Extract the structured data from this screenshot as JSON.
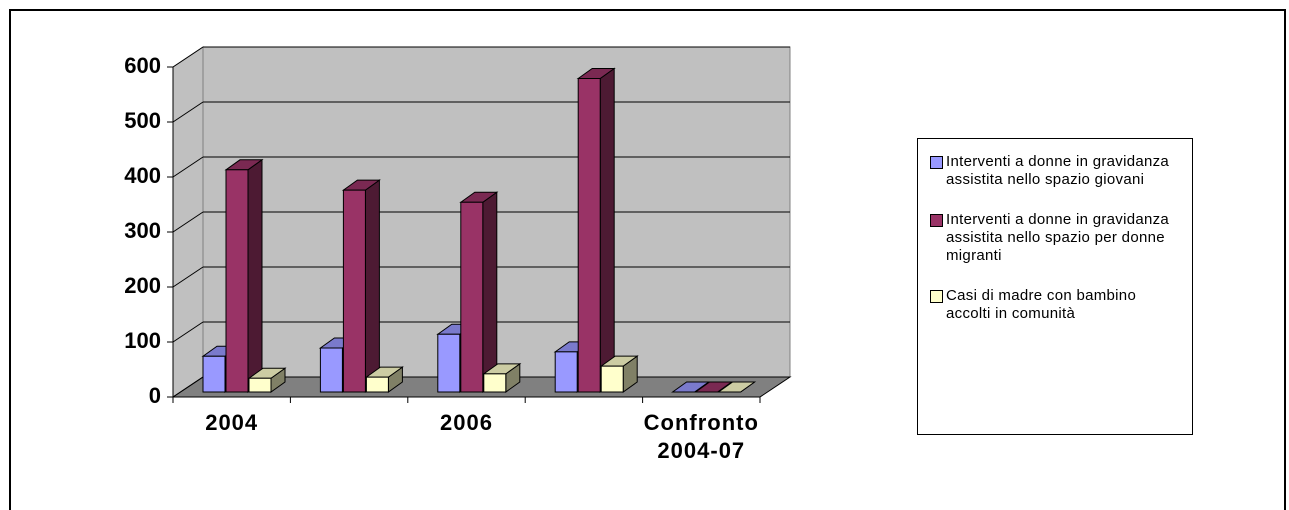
{
  "chart_data": {
    "type": "bar3d",
    "categories": [
      "2004",
      null,
      "2006",
      null,
      "Confronto 2004-07"
    ],
    "series": [
      {
        "name": "Interventi a donne in gravidanza assistita nello spazio giovani",
        "color": "#9999ff",
        "values": [
          65,
          80,
          105,
          73,
          0
        ]
      },
      {
        "name": "Interventi a donne in gravidanza assistita nello spazio per donne migranti",
        "color": "#993366",
        "values": [
          404,
          367,
          345,
          570,
          0
        ]
      },
      {
        "name": "Casi di madre con bambino accolti in comunità",
        "color": "#ffffcc",
        "values": [
          25,
          27,
          33,
          47,
          0
        ]
      }
    ],
    "ylim": [
      0,
      600
    ],
    "yticks": [
      0,
      100,
      200,
      300,
      400,
      500,
      600
    ],
    "grid": true,
    "legend": "right"
  }
}
